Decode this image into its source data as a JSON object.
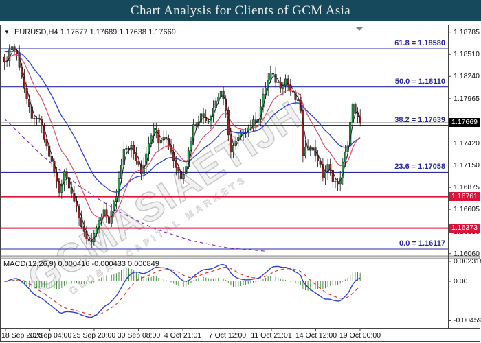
{
  "title": "Chart Analysis for Clients of GCM Asia",
  "watermark": {
    "text": "GCMASIAETIJH",
    "subtext": "GLOBAL CAPITAL MARKETS"
  },
  "header": {
    "symbol": "EURUSD,H4",
    "ohlc": "1.17677 1.17689 1.17638 1.17669"
  },
  "chart_data": {
    "type": "candlestick",
    "symbol": "EURUSD",
    "timeframe": "H4",
    "ohlc_display": {
      "open": "1.17677",
      "high": "1.17689",
      "low": "1.17638",
      "close": "1.17669"
    },
    "current_price": 1.17669,
    "y_axis_ticks": [
      "1.18785",
      "1.18510",
      "1.18240",
      "1.17965",
      "1.17695",
      "1.17420",
      "1.17150",
      "1.16875",
      "1.16605",
      "1.16330",
      "1.16060"
    ],
    "x_axis_labels": [
      "18 Sep 2020",
      "23 Sep 04:00",
      "25 Sep 20:00",
      "30 Sep 08:00",
      "4 Oct 21:01",
      "7 Oct 12:00",
      "11 Oct 21:01",
      "14 Oct 12:00",
      "19 Oct 00:00"
    ],
    "fibonacci_levels": [
      {
        "pct": "61.8",
        "text": "1.18580"
      },
      {
        "pct": "50.0",
        "text": "1.18110"
      },
      {
        "pct": "38.2",
        "text": "1.17639"
      },
      {
        "pct": "23.6",
        "text": "1.17058"
      },
      {
        "pct": "0.0",
        "text": "1.16117"
      }
    ],
    "price_markers": {
      "current": {
        "text": "1.17669"
      },
      "red": [
        {
          "text": "1.16761"
        },
        {
          "text": "1.16373"
        }
      ]
    },
    "bars_total": 144,
    "close_path_anchors": [
      [
        0,
        1.1838
      ],
      [
        2,
        1.1856
      ],
      [
        3,
        1.1862
      ],
      [
        5,
        1.1851
      ],
      [
        7,
        1.1825
      ],
      [
        9,
        1.1792
      ],
      [
        12,
        1.1767
      ],
      [
        14,
        1.1772
      ],
      [
        16,
        1.1747
      ],
      [
        19,
        1.1717
      ],
      [
        22,
        1.1682
      ],
      [
        24,
        1.1708
      ],
      [
        27,
        1.1683
      ],
      [
        30,
        1.1648
      ],
      [
        33,
        1.1627
      ],
      [
        35,
        1.1616
      ],
      [
        37,
        1.1638
      ],
      [
        40,
        1.1656
      ],
      [
        42,
        1.1646
      ],
      [
        45,
        1.1678
      ],
      [
        48,
        1.1738
      ],
      [
        51,
        1.1736
      ],
      [
        53,
        1.1721
      ],
      [
        55,
        1.1704
      ],
      [
        58,
        1.1744
      ],
      [
        60,
        1.1764
      ],
      [
        62,
        1.1746
      ],
      [
        64,
        1.1753
      ],
      [
        66,
        1.1741
      ],
      [
        69,
        1.1713
      ],
      [
        71,
        1.1701
      ],
      [
        73,
        1.1716
      ],
      [
        76,
        1.1763
      ],
      [
        79,
        1.1776
      ],
      [
        82,
        1.1771
      ],
      [
        85,
        1.1794
      ],
      [
        87,
        1.1806
      ],
      [
        89,
        1.1779
      ],
      [
        91,
        1.1731
      ],
      [
        93,
        1.1742
      ],
      [
        96,
        1.1757
      ],
      [
        99,
        1.1763
      ],
      [
        102,
        1.1774
      ],
      [
        105,
        1.1811
      ],
      [
        107,
        1.1826
      ],
      [
        109,
        1.1819
      ],
      [
        111,
        1.1813
      ],
      [
        113,
        1.1821
      ],
      [
        115,
        1.1806
      ],
      [
        117,
        1.1796
      ],
      [
        119,
        1.1784
      ],
      [
        120,
        1.1724
      ],
      [
        122,
        1.1741
      ],
      [
        124,
        1.1734
      ],
      [
        126,
        1.1723
      ],
      [
        128,
        1.1701
      ],
      [
        130,
        1.1713
      ],
      [
        132,
        1.1699
      ],
      [
        134,
        1.1689
      ],
      [
        136,
        1.1716
      ],
      [
        138,
        1.1741
      ],
      [
        139,
        1.1768
      ],
      [
        140,
        1.1788
      ],
      [
        141,
        1.1776
      ],
      [
        142,
        1.1771
      ],
      [
        143,
        1.17669
      ]
    ],
    "trendline_dashed_anchors": [
      [
        0,
        1.1772
      ],
      [
        15,
        1.1727
      ],
      [
        30,
        1.1689
      ],
      [
        45,
        1.1659
      ],
      [
        60,
        1.1637
      ],
      [
        75,
        1.1622
      ],
      [
        90,
        1.1613
      ],
      [
        105,
        1.1609
      ]
    ],
    "macd": {
      "label": "MACD(12,26,9)",
      "values_text": "0.000416 -0.000433 0.000849",
      "main": 0.000416,
      "signal": -0.000433,
      "histogram": 0.000849,
      "axis": [
        "0.002318",
        "0.00",
        "-0.004594"
      ],
      "params": [
        12,
        26,
        9
      ]
    }
  },
  "colors": {
    "title_bg": "#17495d",
    "fib": "#2a2aa0",
    "support_resistance": "#dc143c",
    "bid_line": "#9a9a9a",
    "candle_up": "#1fa34d",
    "candle_down": "#a32020",
    "ma_fast": "#1a1a1a",
    "ma_blue": "#3344dd",
    "ma_red": "#e8506a",
    "trend_dashed": "#7b34c9",
    "macd_main": "#2f3fd8",
    "macd_signal": "#e03535",
    "macd_hist": "#3f8f3f",
    "current_price_bg": "#000000"
  }
}
